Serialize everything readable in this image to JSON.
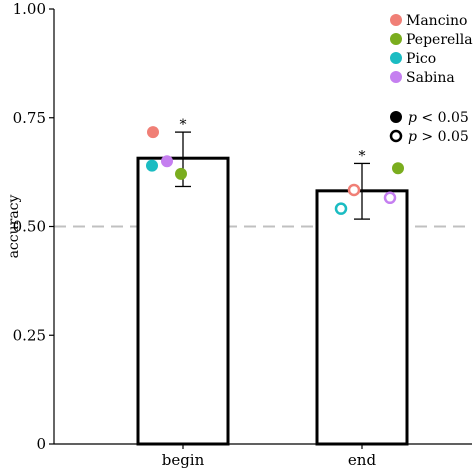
{
  "chart_data": {
    "type": "bar",
    "ylabel": "accuracy",
    "ylim": [
      0,
      1
    ],
    "yticks": [
      "0",
      "0.25",
      "0.50",
      "0.75",
      "1.00"
    ],
    "ytick_values": [
      0,
      0.25,
      0.5,
      0.75,
      1.0
    ],
    "chance_line": 0.5,
    "categories": [
      "begin",
      "end"
    ],
    "values": [
      0.657,
      0.582
    ],
    "error_high": [
      0.717,
      0.645
    ],
    "error_low": [
      0.592,
      0.517
    ],
    "significance_marks": [
      "*",
      "*"
    ],
    "series": [
      {
        "name": "Mancino",
        "color": "#f07f76",
        "values": [
          0.717,
          0.584
        ],
        "significant": [
          true,
          false
        ]
      },
      {
        "name": "Peperella",
        "color": "#7aad1e",
        "values": [
          0.621,
          0.634
        ],
        "significant": [
          true,
          true
        ]
      },
      {
        "name": "Pico",
        "color": "#1bbcc2",
        "values": [
          0.64,
          0.541
        ],
        "significant": [
          true,
          false
        ]
      },
      {
        "name": "Sabina",
        "color": "#c57ff0",
        "values": [
          0.65,
          0.566
        ],
        "significant": [
          true,
          false
        ]
      }
    ],
    "legend_position": "top-right",
    "significance_legend": [
      {
        "label_pre": "p",
        "label_post": " < 0.05",
        "filled": true
      },
      {
        "label_pre": "p",
        "label_post": " > 0.05",
        "filled": false
      }
    ]
  }
}
